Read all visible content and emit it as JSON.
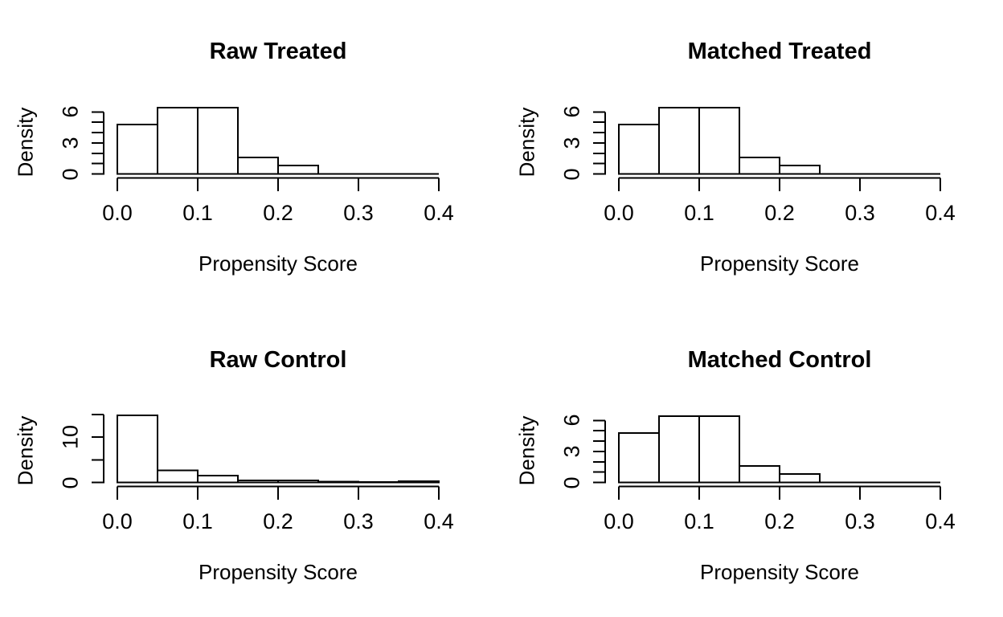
{
  "figure": {
    "background": "#ffffff",
    "line_color": "#000000",
    "text_color": "#000000"
  },
  "chart_data": [
    {
      "type": "bar",
      "variant": "histogram",
      "title": "Raw Treated",
      "xlabel": "Propensity Score",
      "ylabel": "Density",
      "grid": false,
      "legend": false,
      "xlim": [
        0,
        0.4
      ],
      "ylim": [
        0,
        6.66
      ],
      "bin_width": 0.05,
      "bin_edges": [
        0.0,
        0.05,
        0.1,
        0.15,
        0.2,
        0.25,
        0.3,
        0.35,
        0.4
      ],
      "densities": [
        4.8,
        6.4,
        6.4,
        1.6,
        0.8,
        0,
        0,
        0
      ],
      "x_tick_values": [
        0,
        0.1,
        0.2,
        0.3,
        0.4
      ],
      "x_tick_labels": [
        "0.0",
        "0.1",
        "0.2",
        "0.3",
        "0.4"
      ],
      "y_tick_values": [
        0,
        1,
        2,
        3,
        4,
        5,
        6
      ],
      "y_tick_labels": [
        "0",
        "",
        "",
        "3",
        "",
        "",
        "6"
      ]
    },
    {
      "type": "bar",
      "variant": "histogram",
      "title": "Matched Treated",
      "xlabel": "Propensity Score",
      "ylabel": "Density",
      "grid": false,
      "legend": false,
      "xlim": [
        0,
        0.4
      ],
      "ylim": [
        0,
        6.66
      ],
      "bin_width": 0.05,
      "bin_edges": [
        0.0,
        0.05,
        0.1,
        0.15,
        0.2,
        0.25,
        0.3,
        0.35,
        0.4
      ],
      "densities": [
        4.8,
        6.4,
        6.4,
        1.6,
        0.8,
        0,
        0,
        0
      ],
      "x_tick_values": [
        0,
        0.1,
        0.2,
        0.3,
        0.4
      ],
      "x_tick_labels": [
        "0.0",
        "0.1",
        "0.2",
        "0.3",
        "0.4"
      ],
      "y_tick_values": [
        0,
        1,
        2,
        3,
        4,
        5,
        6
      ],
      "y_tick_labels": [
        "0",
        "",
        "",
        "3",
        "",
        "",
        "6"
      ]
    },
    {
      "type": "bar",
      "variant": "histogram",
      "title": "Raw Control",
      "xlabel": "Propensity Score",
      "ylabel": "Density",
      "grid": false,
      "legend": false,
      "xlim": [
        0,
        0.4
      ],
      "ylim": [
        0,
        15.2
      ],
      "bin_width": 0.05,
      "bin_edges": [
        0.0,
        0.05,
        0.1,
        0.15,
        0.2,
        0.25,
        0.3,
        0.35,
        0.4
      ],
      "densities": [
        14.8,
        2.7,
        1.5,
        0.4,
        0.4,
        0.15,
        0.1,
        0.3
      ],
      "x_tick_values": [
        0,
        0.1,
        0.2,
        0.3,
        0.4
      ],
      "x_tick_labels": [
        "0.0",
        "0.1",
        "0.2",
        "0.3",
        "0.4"
      ],
      "y_tick_values": [
        0,
        5,
        10,
        15
      ],
      "y_tick_labels": [
        "0",
        "",
        "10",
        ""
      ]
    },
    {
      "type": "bar",
      "variant": "histogram",
      "title": "Matched Control",
      "xlabel": "Propensity Score",
      "ylabel": "Density",
      "grid": false,
      "legend": false,
      "xlim": [
        0,
        0.4
      ],
      "ylim": [
        0,
        6.66
      ],
      "bin_width": 0.05,
      "bin_edges": [
        0.0,
        0.05,
        0.1,
        0.15,
        0.2,
        0.25,
        0.3,
        0.35,
        0.4
      ],
      "densities": [
        4.8,
        6.4,
        6.4,
        1.6,
        0.8,
        0,
        0,
        0
      ],
      "x_tick_values": [
        0,
        0.1,
        0.2,
        0.3,
        0.4
      ],
      "x_tick_labels": [
        "0.0",
        "0.1",
        "0.2",
        "0.3",
        "0.4"
      ],
      "y_tick_values": [
        0,
        1,
        2,
        3,
        4,
        5,
        6
      ],
      "y_tick_labels": [
        "0",
        "",
        "",
        "3",
        "",
        "",
        "6"
      ]
    }
  ]
}
